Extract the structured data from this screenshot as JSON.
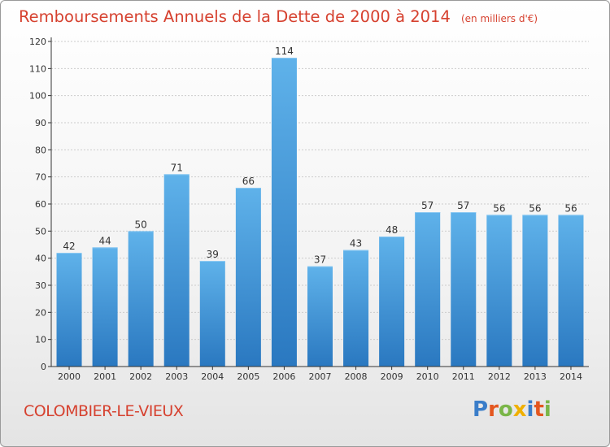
{
  "title": "Remboursements Annuels de la Dette de 2000 à 2014",
  "unit": "(en milliers d'€)",
  "commune": "COLOMBIER-LE-VIEUX",
  "brand": {
    "letters": [
      "P",
      "r",
      "o",
      "x",
      "i",
      "t",
      "i"
    ],
    "colors": [
      "#3a7dc9",
      "#e4571f",
      "#7ab648",
      "#f0b000",
      "#3a7dc9",
      "#e4571f",
      "#7ab648"
    ]
  },
  "colors": {
    "bar_top": "#5fb2ea",
    "bar_bottom": "#2a78c0",
    "title": "#d6412f",
    "axis": "#333333",
    "grid": "#cccccc"
  },
  "chart_data": {
    "type": "bar",
    "categories": [
      "2000",
      "2001",
      "2002",
      "2003",
      "2004",
      "2005",
      "2006",
      "2007",
      "2008",
      "2009",
      "2010",
      "2011",
      "2012",
      "2013",
      "2014"
    ],
    "values": [
      42,
      44,
      50,
      71,
      39,
      66,
      114,
      37,
      43,
      48,
      57,
      57,
      56,
      56,
      56
    ],
    "data_labels": [
      "42",
      "44",
      "50",
      "71",
      "39",
      "66",
      "114",
      "37",
      "43",
      "48",
      "57",
      "57",
      "56",
      "56",
      "56"
    ],
    "yticks": [
      "0",
      "10",
      "20",
      "30",
      "40",
      "50",
      "60",
      "70",
      "80",
      "90",
      "100",
      "110",
      "120"
    ],
    "ylim": [
      0,
      120
    ],
    "grid": true,
    "legend": "none"
  }
}
